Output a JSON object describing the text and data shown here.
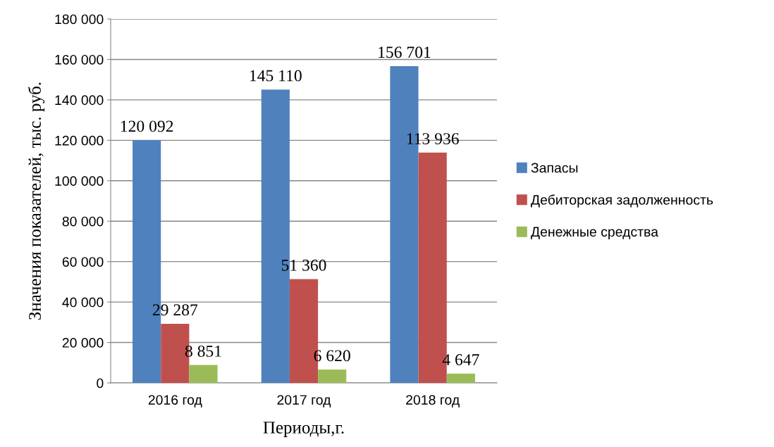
{
  "chart_data": {
    "type": "bar",
    "xlabel": "Периоды,г.",
    "ylabel": "Значения показателей, тыс. руб.",
    "categories": [
      "2016 год",
      "2017 год",
      "2018 год"
    ],
    "series": [
      {
        "name": "Запасы",
        "color": "#4f81bd",
        "values": [
          120092,
          145110,
          156701
        ],
        "value_labels": [
          "120 092",
          "145 110",
          "156 701"
        ]
      },
      {
        "name": "Дебиторская задолженность",
        "color": "#c0504d",
        "values": [
          29287,
          51360,
          113936
        ],
        "value_labels": [
          "29 287",
          "51 360",
          "113 936"
        ]
      },
      {
        "name": "Денежные средства",
        "color": "#9bbb59",
        "values": [
          8851,
          6620,
          4647
        ],
        "value_labels": [
          "8 851",
          "6 620",
          "4 647"
        ]
      }
    ],
    "ylim": [
      0,
      180000
    ],
    "yticks": [
      {
        "value": 0,
        "label": "0"
      },
      {
        "value": 20000,
        "label": "20 000"
      },
      {
        "value": 40000,
        "label": "40 000"
      },
      {
        "value": 60000,
        "label": "60 000"
      },
      {
        "value": 80000,
        "label": "80 000"
      },
      {
        "value": 100000,
        "label": "100 000"
      },
      {
        "value": 120000,
        "label": "120 000"
      },
      {
        "value": 140000,
        "label": "140 000"
      },
      {
        "value": 160000,
        "label": "160 000"
      },
      {
        "value": 180000,
        "label": "180 000"
      }
    ],
    "grid": "y",
    "legend": "right"
  }
}
